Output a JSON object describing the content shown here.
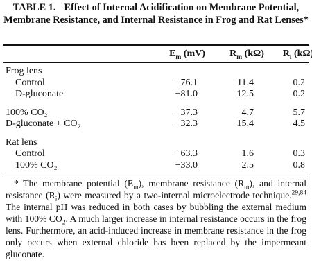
{
  "table": {
    "label": "TABLE 1.",
    "title": "Effect of Internal Acidification on Membrane Potential, Membrane Resistance, and Internal Resistance in Frog and Rat Lenses*",
    "columns": [
      {
        "symbol": "E",
        "sub": "m",
        "unit": "(mV)"
      },
      {
        "symbol": "R",
        "sub": "m",
        "unit": "(kΩ)"
      },
      {
        "symbol": "R",
        "sub": "i",
        "unit": "(kΩ)"
      }
    ],
    "sections": [
      {
        "label": "Frog lens",
        "rows": [
          {
            "label": "Control",
            "cells": [
              "−76.1",
              "11.4",
              "0.2"
            ]
          },
          {
            "label": "D-gluconate",
            "cells": [
              "−81.0",
              "12.5",
              "0.2"
            ]
          }
        ]
      },
      {
        "rows": [
          {
            "label": "100% CO₂",
            "cells": [
              "−37.3",
              "4.7",
              "5.7"
            ]
          },
          {
            "label": "D-gluconate + CO₂",
            "cells": [
              "−32.3",
              "15.4",
              "4.5"
            ]
          }
        ]
      },
      {
        "label": "Rat lens",
        "rows": [
          {
            "label": "Control",
            "cells": [
              "−63.3",
              "1.6",
              "0.3"
            ]
          },
          {
            "label": "100% CO₂",
            "cells": [
              "−33.0",
              "2.5",
              "0.8"
            ]
          }
        ]
      }
    ],
    "footnote": [
      {
        "text": "* The membrane potential (E"
      },
      {
        "text": "m",
        "kind": "sub"
      },
      {
        "text": "), membrane resistance (R"
      },
      {
        "text": "m",
        "kind": "sub"
      },
      {
        "text": "), and internal resistance (R"
      },
      {
        "text": "i",
        "kind": "sub"
      },
      {
        "text": ") were measured by a two-internal microelectrode technique."
      },
      {
        "text": "29,84",
        "kind": "sup"
      },
      {
        "text": " The internal pH was reduced in both cases by bubbling the external medium with 100% CO"
      },
      {
        "text": "2",
        "kind": "sub"
      },
      {
        "text": ". A much larger increase in internal resistance occurs in the frog lens. Furthermore, an acid-induced increase in membrane resistance in the frog only occurs when external chloride has been replaced by the impermeant gluconate."
      }
    ]
  }
}
